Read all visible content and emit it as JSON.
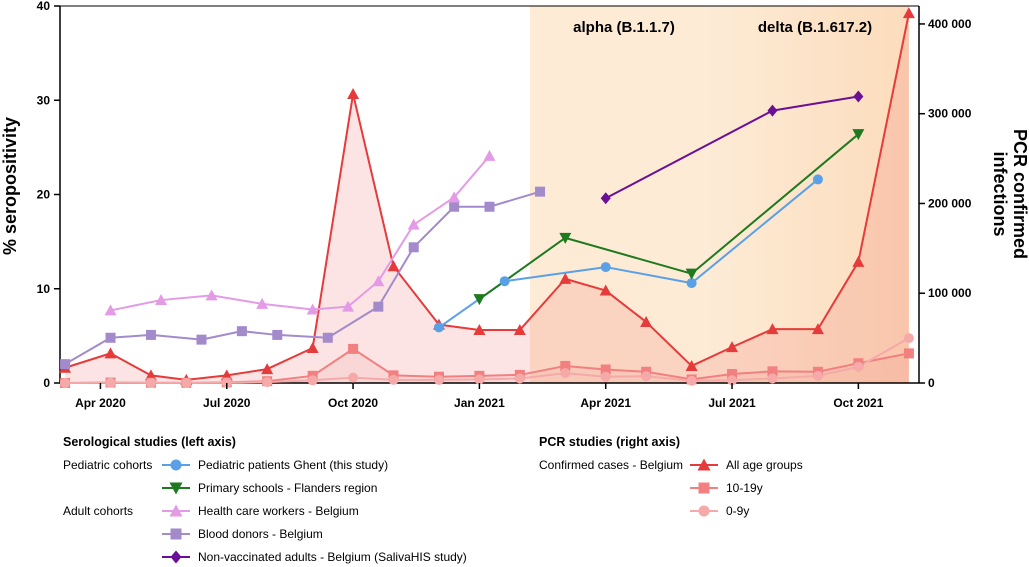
{
  "chart_data": {
    "type": "line",
    "x_range": [
      2020.17,
      2021.87
    ],
    "x_ticks": [
      {
        "label": "Apr 2020",
        "x": 2020.25
      },
      {
        "label": "Jul 2020",
        "x": 2020.5
      },
      {
        "label": "Oct 2020",
        "x": 2020.75
      },
      {
        "label": "Jan 2021",
        "x": 2021.0
      },
      {
        "label": "Apr 2021",
        "x": 2021.25
      },
      {
        "label": "Jul 2021",
        "x": 2021.5
      },
      {
        "label": "Oct 2021",
        "x": 2021.75
      }
    ],
    "y_left": {
      "label": "% seropositivity",
      "range": [
        0,
        40
      ],
      "ticks": [
        {
          "label": "0",
          "v": 0
        },
        {
          "label": "10",
          "v": 10
        },
        {
          "label": "20",
          "v": 20
        },
        {
          "label": "30",
          "v": 30
        },
        {
          "label": "40",
          "v": 40
        }
      ]
    },
    "y_right": {
      "label": "PCR confirmed infections",
      "label_lines": [
        "PCR confirmed",
        "infections"
      ],
      "range": [
        0,
        420000
      ],
      "ticks": [
        {
          "label": "0",
          "v": 0
        },
        {
          "label": "100 000",
          "v": 100000
        },
        {
          "label": "200 000",
          "v": 200000
        },
        {
          "label": "300 000",
          "v": 300000
        },
        {
          "label": "400 000",
          "v": 400000
        }
      ]
    },
    "shaded_periods": [
      {
        "label": "alpha (B.1.1.7)",
        "start": 2021.1,
        "end": 2021.45,
        "color": "#fdebd6"
      },
      {
        "label": "delta (B.1.617.2)",
        "start": 2021.45,
        "end": 2021.85,
        "color_from": "#fdebd6",
        "color_to": "#fcdcbc"
      }
    ],
    "series": [
      {
        "key": "ghent",
        "name": "Pediatric patients Ghent (this study)",
        "axis": "left",
        "color": "#5aa0e6",
        "marker": "circle",
        "fill": false,
        "points": [
          [
            2020.92,
            5.9
          ],
          [
            2021.05,
            10.8
          ],
          [
            2021.25,
            12.3
          ],
          [
            2021.42,
            10.6
          ],
          [
            2021.67,
            21.6
          ]
        ]
      },
      {
        "key": "schools",
        "name": "Primary schools - Flanders region",
        "axis": "left",
        "color": "#1f7a1f",
        "marker": "triangle-down",
        "fill": false,
        "points": [
          [
            2021.0,
            8.9
          ],
          [
            2021.17,
            15.4
          ],
          [
            2021.42,
            11.6
          ],
          [
            2021.75,
            26.4
          ]
        ]
      },
      {
        "key": "hcw",
        "name": "Health care workers - Belgium",
        "axis": "left",
        "color": "#e49be6",
        "marker": "triangle-up",
        "fill": false,
        "points": [
          [
            2020.27,
            7.7
          ],
          [
            2020.37,
            8.8
          ],
          [
            2020.47,
            9.3
          ],
          [
            2020.57,
            8.4
          ],
          [
            2020.67,
            7.8
          ],
          [
            2020.74,
            8.1
          ],
          [
            2020.8,
            10.8
          ],
          [
            2020.87,
            16.8
          ],
          [
            2020.95,
            19.7
          ],
          [
            2021.02,
            24.1
          ]
        ]
      },
      {
        "key": "blood",
        "name": "Blood donors - Belgium",
        "axis": "left",
        "color": "#a38bcb",
        "marker": "square",
        "fill": false,
        "points": [
          [
            2020.18,
            2.0
          ],
          [
            2020.27,
            4.8
          ],
          [
            2020.35,
            5.1
          ],
          [
            2020.45,
            4.6
          ],
          [
            2020.53,
            5.5
          ],
          [
            2020.6,
            5.1
          ],
          [
            2020.7,
            4.8
          ],
          [
            2020.8,
            8.1
          ],
          [
            2020.87,
            14.4
          ],
          [
            2020.95,
            18.7
          ],
          [
            2021.02,
            18.7
          ],
          [
            2021.12,
            20.3
          ]
        ]
      },
      {
        "key": "saliva",
        "name": "Non-vaccinated adults - Belgium (SalivaHIS study)",
        "axis": "left",
        "color": "#6a0f96",
        "marker": "diamond",
        "fill": false,
        "points": [
          [
            2021.25,
            19.6
          ],
          [
            2021.58,
            28.9
          ],
          [
            2021.75,
            30.4
          ]
        ]
      },
      {
        "key": "all",
        "name": "All age groups",
        "axis": "right",
        "color": "#e53b3b",
        "marker": "triangle-up",
        "fill": true,
        "fill_color": "rgba(236,90,90,0.16)",
        "points": [
          [
            2020.18,
            17000
          ],
          [
            2020.27,
            33000
          ],
          [
            2020.35,
            8500
          ],
          [
            2020.42,
            3500
          ],
          [
            2020.5,
            8500
          ],
          [
            2020.58,
            15500
          ],
          [
            2020.67,
            39000
          ],
          [
            2020.75,
            322000
          ],
          [
            2020.83,
            130000
          ],
          [
            2020.92,
            65000
          ],
          [
            2021.0,
            59000
          ],
          [
            2021.08,
            59000
          ],
          [
            2021.17,
            116000
          ],
          [
            2021.25,
            103000
          ],
          [
            2021.33,
            68000
          ],
          [
            2021.42,
            19000
          ],
          [
            2021.5,
            40000
          ],
          [
            2021.58,
            60000
          ],
          [
            2021.67,
            60000
          ],
          [
            2021.75,
            135000
          ],
          [
            2021.85,
            412000
          ]
        ]
      },
      {
        "key": "teen",
        "name": "10-19y",
        "axis": "right",
        "color": "#f28080",
        "marker": "square",
        "fill": true,
        "fill_color": "rgba(236,110,110,0.10)",
        "points": [
          [
            2020.18,
            0
          ],
          [
            2020.27,
            500
          ],
          [
            2020.35,
            300
          ],
          [
            2020.42,
            200
          ],
          [
            2020.5,
            700
          ],
          [
            2020.58,
            2000
          ],
          [
            2020.67,
            8000
          ],
          [
            2020.75,
            38000
          ],
          [
            2020.83,
            8500
          ],
          [
            2020.92,
            7000
          ],
          [
            2021.0,
            8000
          ],
          [
            2021.08,
            9000
          ],
          [
            2021.17,
            19000
          ],
          [
            2021.25,
            15000
          ],
          [
            2021.33,
            12500
          ],
          [
            2021.42,
            4000
          ],
          [
            2021.5,
            10000
          ],
          [
            2021.58,
            13000
          ],
          [
            2021.67,
            12500
          ],
          [
            2021.75,
            22000
          ],
          [
            2021.85,
            33000
          ]
        ]
      },
      {
        "key": "child",
        "name": "0-9y",
        "axis": "right",
        "color": "#f5a9a9",
        "marker": "circle",
        "fill": false,
        "points": [
          [
            2020.18,
            0
          ],
          [
            2020.27,
            300
          ],
          [
            2020.35,
            200
          ],
          [
            2020.42,
            100
          ],
          [
            2020.5,
            300
          ],
          [
            2020.58,
            1000
          ],
          [
            2020.67,
            3000
          ],
          [
            2020.75,
            6000
          ],
          [
            2020.83,
            3500
          ],
          [
            2020.92,
            3500
          ],
          [
            2021.0,
            4000
          ],
          [
            2021.08,
            5000
          ],
          [
            2021.17,
            11000
          ],
          [
            2021.25,
            7000
          ],
          [
            2021.33,
            7500
          ],
          [
            2021.42,
            2500
          ],
          [
            2021.5,
            3000
          ],
          [
            2021.58,
            5000
          ],
          [
            2021.67,
            8000
          ],
          [
            2021.75,
            18000
          ],
          [
            2021.85,
            50000
          ]
        ]
      }
    ],
    "legend": {
      "serology_title": "Serological studies (left axis)",
      "pcr_title": "PCR studies (right axis)",
      "groups": {
        "pediatric": "Pediatric cohorts",
        "adult": "Adult cohorts",
        "confirmed": "Confirmed cases - Belgium"
      }
    }
  }
}
